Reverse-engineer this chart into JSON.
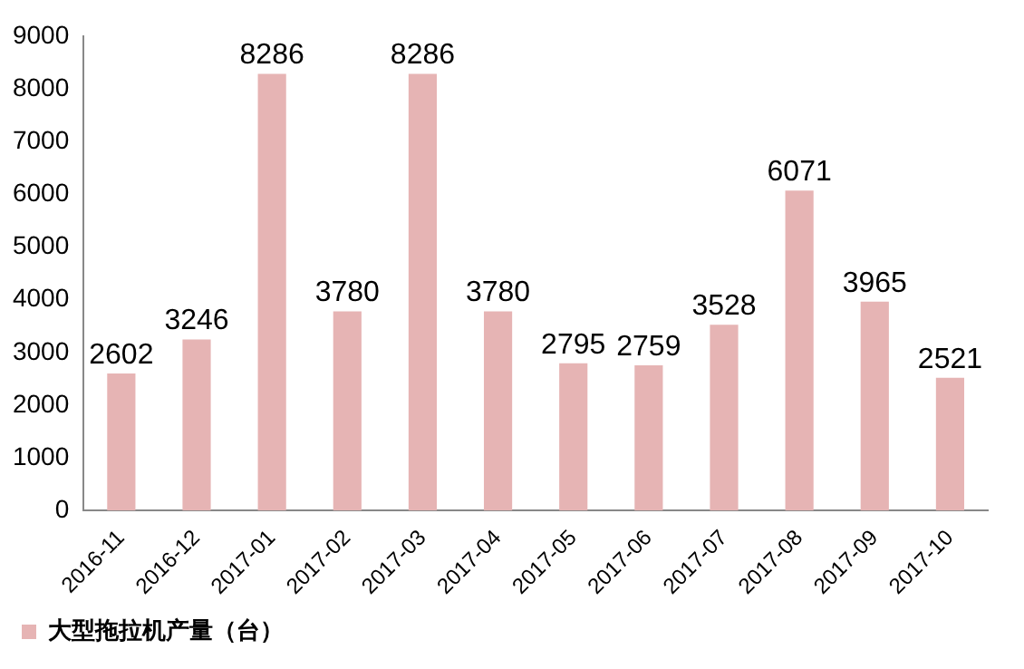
{
  "chart_data": {
    "type": "bar",
    "categories": [
      "2016-11",
      "2016-12",
      "2017-01",
      "2017-02",
      "2017-03",
      "2017-04",
      "2017-05",
      "2017-06",
      "2017-07",
      "2017-08",
      "2017-09",
      "2017-10"
    ],
    "series": [
      {
        "name": "大型拖拉机产量（台）",
        "color": "#e6b4b4",
        "values": [
          2602,
          3246,
          8286,
          3780,
          8286,
          3780,
          2795,
          2759,
          3528,
          6071,
          3965,
          2521
        ]
      }
    ],
    "ylim": [
      0,
      9000
    ],
    "yticks": [
      0,
      1000,
      2000,
      3000,
      4000,
      5000,
      6000,
      7000,
      8000,
      9000
    ],
    "grid": false,
    "legend": "bottom left",
    "data_labels": true
  }
}
